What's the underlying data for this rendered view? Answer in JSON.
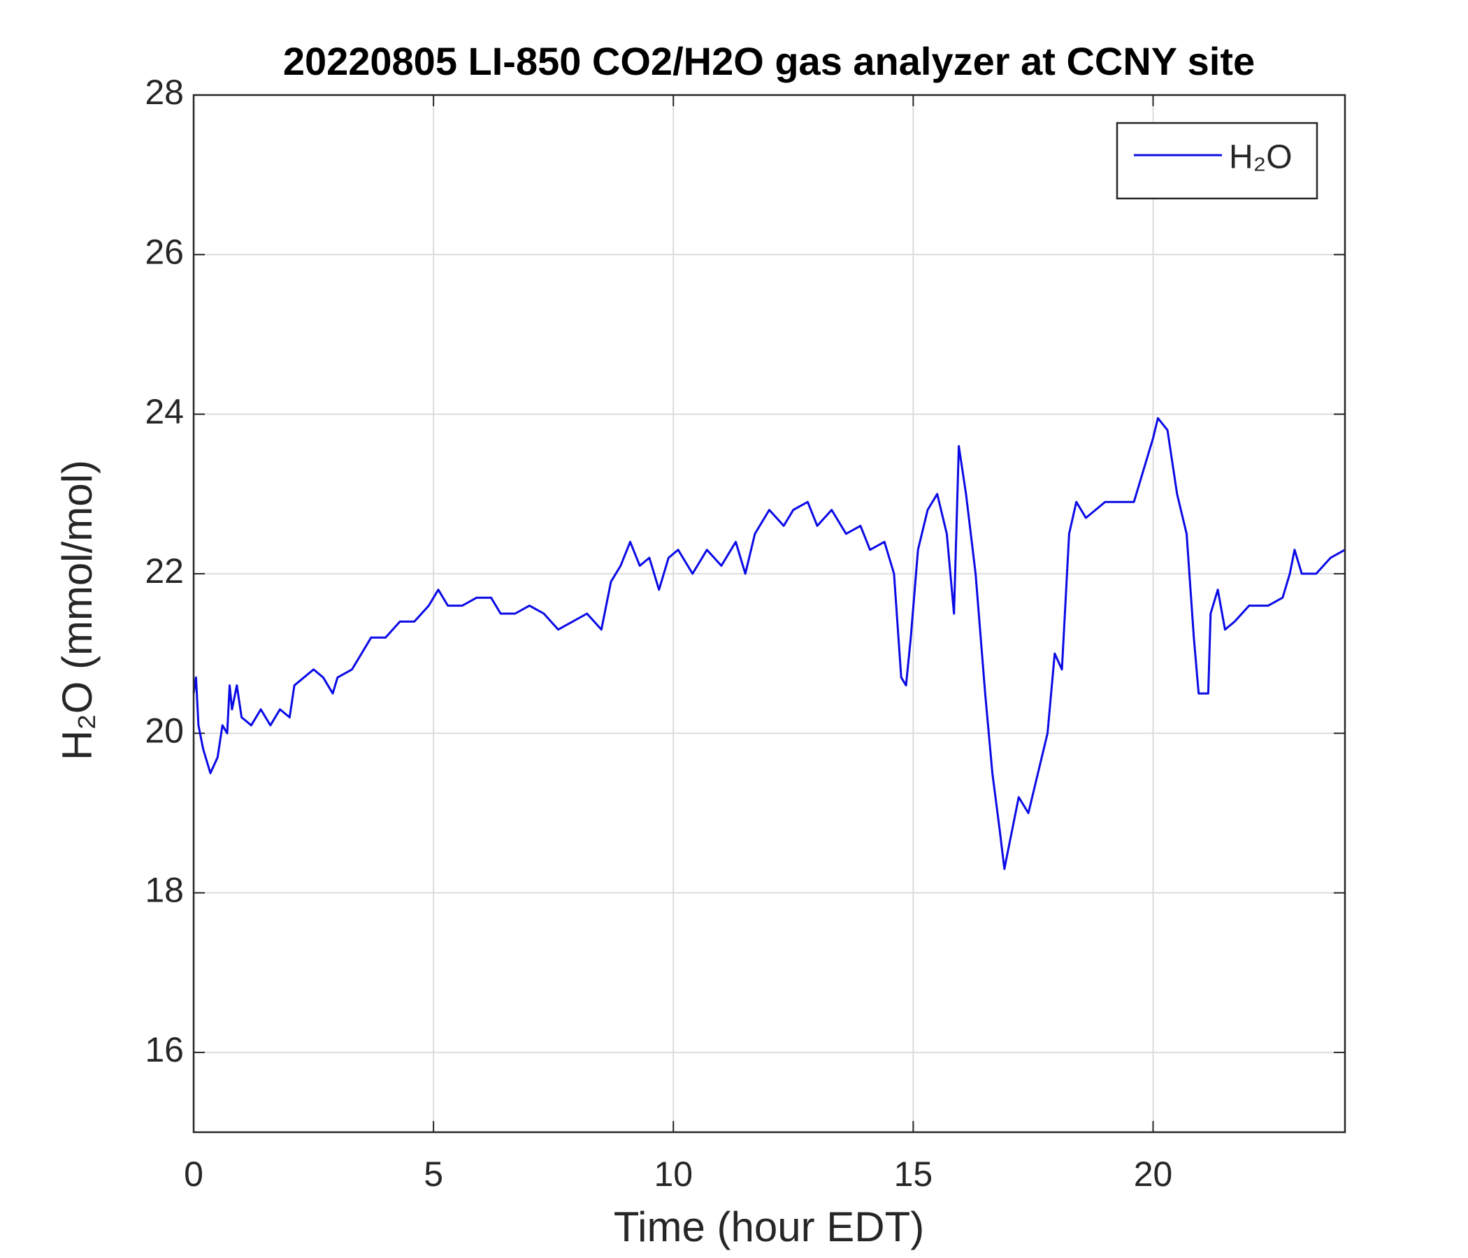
{
  "chart_data": {
    "type": "line",
    "title": "20220805 LI-850 CO2/H2O gas analyzer at CCNY site",
    "xlabel": "Time (hour EDT)",
    "ylabel": "H₂O (mmol/mol)",
    "xlim": [
      0,
      24
    ],
    "xticks": [
      0,
      5,
      10,
      15,
      20
    ],
    "ylim": [
      15,
      28
    ],
    "yticks": [
      16,
      18,
      20,
      22,
      24,
      26,
      28
    ],
    "grid": true,
    "legend": "upper right",
    "x": [
      0,
      0.05,
      0.1,
      0.2,
      0.35,
      0.5,
      0.6,
      0.7,
      0.75,
      0.8,
      0.9,
      1.0,
      1.2,
      1.4,
      1.6,
      1.8,
      2.0,
      2.1,
      2.3,
      2.5,
      2.7,
      2.9,
      3.0,
      3.3,
      3.5,
      3.7,
      4.0,
      4.3,
      4.6,
      4.9,
      5.1,
      5.3,
      5.6,
      5.9,
      6.2,
      6.4,
      6.7,
      7.0,
      7.3,
      7.6,
      7.9,
      8.2,
      8.5,
      8.7,
      8.9,
      9.1,
      9.3,
      9.5,
      9.7,
      9.9,
      10.1,
      10.4,
      10.7,
      11.0,
      11.3,
      11.5,
      11.7,
      12.0,
      12.3,
      12.5,
      12.8,
      13.0,
      13.3,
      13.6,
      13.9,
      14.1,
      14.4,
      14.6,
      14.75,
      14.85,
      14.95,
      15.1,
      15.3,
      15.5,
      15.7,
      15.85,
      15.95,
      16.1,
      16.3,
      16.5,
      16.65,
      16.8,
      16.9,
      17.0,
      17.2,
      17.4,
      17.6,
      17.8,
      17.95,
      18.1,
      18.25,
      18.4,
      18.6,
      18.8,
      19.0,
      19.3,
      19.6,
      19.8,
      20.0,
      20.1,
      20.3,
      20.5,
      20.7,
      20.85,
      20.95,
      21.15,
      21.2,
      21.35,
      21.5,
      21.7,
      22.0,
      22.4,
      22.7,
      22.85,
      22.95,
      23.1,
      23.4,
      23.7,
      24.0
    ],
    "series": [
      {
        "name": "H₂O",
        "color": "#0a0ae6",
        "values": [
          20.5,
          20.7,
          20.1,
          19.8,
          19.5,
          19.7,
          20.1,
          20.0,
          20.6,
          20.3,
          20.6,
          20.2,
          20.1,
          20.3,
          20.1,
          20.3,
          20.2,
          20.6,
          20.7,
          20.8,
          20.7,
          20.5,
          20.7,
          20.8,
          21.0,
          21.2,
          21.2,
          21.4,
          21.4,
          21.6,
          21.8,
          21.6,
          21.6,
          21.7,
          21.7,
          21.5,
          21.5,
          21.6,
          21.5,
          21.3,
          21.4,
          21.5,
          21.3,
          21.9,
          22.1,
          22.4,
          22.1,
          22.2,
          21.8,
          22.2,
          22.3,
          22.0,
          22.3,
          22.1,
          22.4,
          22.0,
          22.5,
          22.8,
          22.6,
          22.8,
          22.9,
          22.6,
          22.8,
          22.5,
          22.6,
          22.3,
          22.4,
          22.0,
          20.7,
          20.6,
          21.2,
          22.3,
          22.8,
          23.0,
          22.5,
          21.5,
          23.6,
          23.0,
          22.0,
          20.5,
          19.5,
          18.8,
          18.3,
          18.6,
          19.2,
          19.0,
          19.5,
          20.0,
          21.0,
          20.8,
          22.5,
          22.9,
          22.7,
          22.8,
          22.9,
          22.9,
          22.9,
          23.3,
          23.7,
          23.95,
          23.8,
          23.0,
          22.5,
          21.2,
          20.5,
          20.5,
          21.5,
          21.8,
          21.3,
          21.4,
          21.6,
          21.6,
          21.7,
          22.0,
          22.3,
          22.0,
          22.0,
          22.2,
          22.3
        ]
      }
    ]
  }
}
